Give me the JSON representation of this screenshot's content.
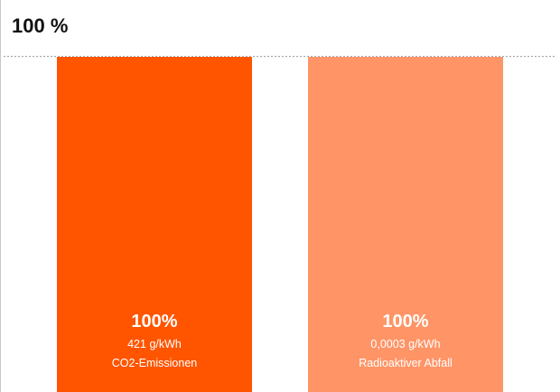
{
  "chart_data": {
    "type": "bar",
    "title": "",
    "xlabel": "",
    "ylabel": "",
    "ylim": [
      0,
      100
    ],
    "y_max_label": "100 %",
    "grid": false,
    "legend": "none",
    "categories": [
      "CO2-Emissionen",
      "Radioaktiver Abfall"
    ],
    "values": [
      100,
      100
    ],
    "value_labels": [
      "100%",
      "100%"
    ],
    "sub_labels": [
      "421 g/kWh",
      "0,0003 g/kWh"
    ],
    "colors": [
      "#ff5500",
      "#ff9466"
    ]
  },
  "colors": {
    "reference_line": "#aaaaaa",
    "axis_line": "#c8c8c8",
    "label_text": "#ffffff"
  }
}
